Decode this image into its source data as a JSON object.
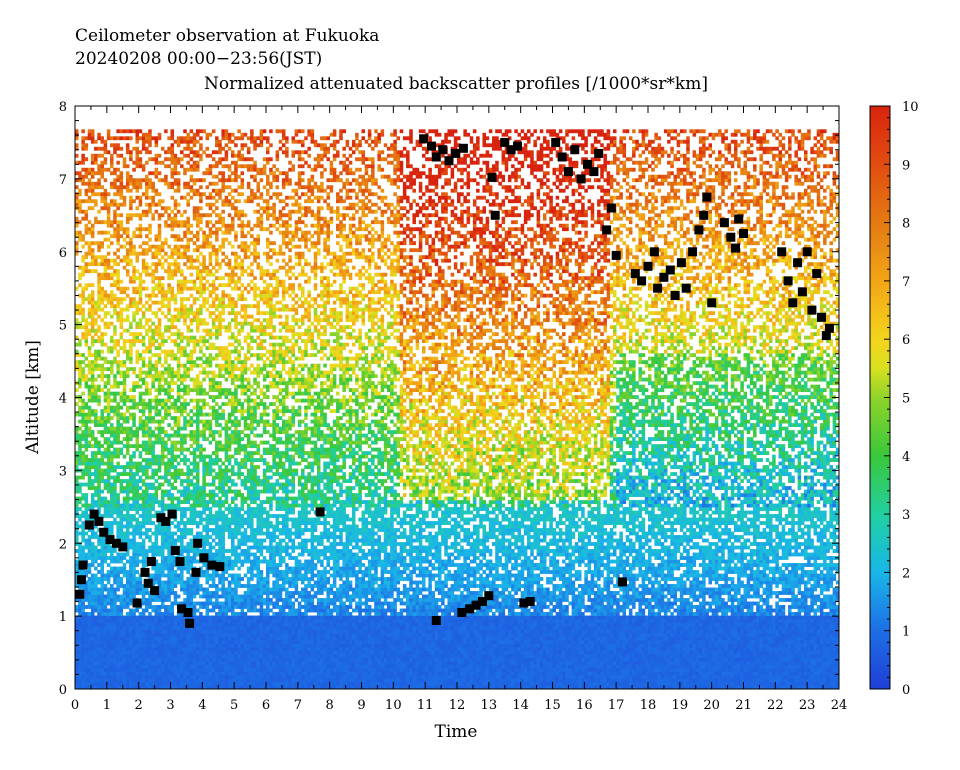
{
  "chart_data": {
    "type": "heatmap",
    "title_lines": [
      "Ceilometer observation at Fukuoka",
      "20240208  00:00−23:56(JST)"
    ],
    "subtitle": "Normalized attenuated backscatter profiles [/1000*sr*km]",
    "xlabel": "Time",
    "ylabel": "Altitude [km]",
    "xlim": [
      0,
      24
    ],
    "ylim": [
      0,
      8
    ],
    "x_ticks": [
      "0",
      "1",
      "2",
      "3",
      "4",
      "5",
      "6",
      "7",
      "8",
      "9",
      "10",
      "11",
      "12",
      "13",
      "14",
      "15",
      "16",
      "17",
      "18",
      "19",
      "20",
      "21",
      "22",
      "23",
      "24"
    ],
    "y_ticks": [
      "0",
      "1",
      "2",
      "3",
      "4",
      "5",
      "6",
      "7",
      "8"
    ],
    "colorbar": {
      "range": [
        0,
        10
      ],
      "ticks": [
        "0",
        "1",
        "2",
        "3",
        "4",
        "5",
        "6",
        "7",
        "8",
        "9",
        "10"
      ],
      "stops": [
        {
          "value": 0,
          "color": "#1f3fd6"
        },
        {
          "value": 1,
          "color": "#1d6fe6"
        },
        {
          "value": 2,
          "color": "#19b6e8"
        },
        {
          "value": 3,
          "color": "#22d0a0"
        },
        {
          "value": 4,
          "color": "#39c83a"
        },
        {
          "value": 5,
          "color": "#8fd42a"
        },
        {
          "value": 5.5,
          "color": "#d8e020"
        },
        {
          "value": 6,
          "color": "#f4d41c"
        },
        {
          "value": 7,
          "color": "#f2a516"
        },
        {
          "value": 8,
          "color": "#e47a12"
        },
        {
          "value": 9,
          "color": "#e24d10"
        },
        {
          "value": 10,
          "color": "#d8230e"
        }
      ]
    },
    "cloud_base_markers": [
      {
        "time": 0.15,
        "alt": 1.3
      },
      {
        "time": 0.2,
        "alt": 1.5
      },
      {
        "time": 0.25,
        "alt": 1.7
      },
      {
        "time": 0.45,
        "alt": 2.25
      },
      {
        "time": 0.6,
        "alt": 2.4
      },
      {
        "time": 0.75,
        "alt": 2.3
      },
      {
        "time": 0.9,
        "alt": 2.15
      },
      {
        "time": 1.1,
        "alt": 2.05
      },
      {
        "time": 1.3,
        "alt": 2.0
      },
      {
        "time": 1.5,
        "alt": 1.95
      },
      {
        "time": 1.95,
        "alt": 1.18
      },
      {
        "time": 2.2,
        "alt": 1.6
      },
      {
        "time": 2.3,
        "alt": 1.45
      },
      {
        "time": 2.4,
        "alt": 1.75
      },
      {
        "time": 2.5,
        "alt": 1.35
      },
      {
        "time": 2.7,
        "alt": 2.35
      },
      {
        "time": 2.85,
        "alt": 2.3
      },
      {
        "time": 3.05,
        "alt": 2.4
      },
      {
        "time": 3.15,
        "alt": 1.9
      },
      {
        "time": 3.3,
        "alt": 1.75
      },
      {
        "time": 3.35,
        "alt": 1.1
      },
      {
        "time": 3.55,
        "alt": 1.05
      },
      {
        "time": 3.6,
        "alt": 0.9
      },
      {
        "time": 3.8,
        "alt": 1.6
      },
      {
        "time": 3.85,
        "alt": 2.0
      },
      {
        "time": 4.05,
        "alt": 1.8
      },
      {
        "time": 4.3,
        "alt": 1.7
      },
      {
        "time": 4.55,
        "alt": 1.68
      },
      {
        "time": 7.7,
        "alt": 2.43
      },
      {
        "time": 10.95,
        "alt": 7.55
      },
      {
        "time": 11.2,
        "alt": 7.45
      },
      {
        "time": 11.35,
        "alt": 7.3
      },
      {
        "time": 11.55,
        "alt": 7.4
      },
      {
        "time": 11.75,
        "alt": 7.25
      },
      {
        "time": 11.95,
        "alt": 7.35
      },
      {
        "time": 12.2,
        "alt": 7.42
      },
      {
        "time": 11.35,
        "alt": 0.94
      },
      {
        "time": 12.15,
        "alt": 1.05
      },
      {
        "time": 12.4,
        "alt": 1.1
      },
      {
        "time": 12.6,
        "alt": 1.15
      },
      {
        "time": 12.8,
        "alt": 1.2
      },
      {
        "time": 13.0,
        "alt": 1.28
      },
      {
        "time": 13.1,
        "alt": 7.02
      },
      {
        "time": 13.2,
        "alt": 6.5
      },
      {
        "time": 13.5,
        "alt": 7.5
      },
      {
        "time": 13.7,
        "alt": 7.4
      },
      {
        "time": 13.9,
        "alt": 7.45
      },
      {
        "time": 14.1,
        "alt": 1.18
      },
      {
        "time": 14.3,
        "alt": 1.2
      },
      {
        "time": 15.1,
        "alt": 7.5
      },
      {
        "time": 15.3,
        "alt": 7.3
      },
      {
        "time": 15.5,
        "alt": 7.1
      },
      {
        "time": 15.7,
        "alt": 7.4
      },
      {
        "time": 15.9,
        "alt": 7.0
      },
      {
        "time": 16.1,
        "alt": 7.2
      },
      {
        "time": 16.3,
        "alt": 7.1
      },
      {
        "time": 16.45,
        "alt": 7.35
      },
      {
        "time": 16.7,
        "alt": 6.3
      },
      {
        "time": 16.85,
        "alt": 6.6
      },
      {
        "time": 17.0,
        "alt": 5.95
      },
      {
        "time": 17.2,
        "alt": 1.47
      },
      {
        "time": 17.6,
        "alt": 5.7
      },
      {
        "time": 17.8,
        "alt": 5.6
      },
      {
        "time": 18.0,
        "alt": 5.8
      },
      {
        "time": 18.2,
        "alt": 6.0
      },
      {
        "time": 18.3,
        "alt": 5.5
      },
      {
        "time": 18.5,
        "alt": 5.65
      },
      {
        "time": 18.7,
        "alt": 5.75
      },
      {
        "time": 18.85,
        "alt": 5.4
      },
      {
        "time": 19.05,
        "alt": 5.85
      },
      {
        "time": 19.2,
        "alt": 5.5
      },
      {
        "time": 19.4,
        "alt": 6.0
      },
      {
        "time": 19.6,
        "alt": 6.3
      },
      {
        "time": 19.75,
        "alt": 6.5
      },
      {
        "time": 19.85,
        "alt": 6.75
      },
      {
        "time": 20.0,
        "alt": 5.3
      },
      {
        "time": 20.4,
        "alt": 6.4
      },
      {
        "time": 20.6,
        "alt": 6.2
      },
      {
        "time": 20.75,
        "alt": 6.05
      },
      {
        "time": 20.85,
        "alt": 6.45
      },
      {
        "time": 21.0,
        "alt": 6.25
      },
      {
        "time": 22.2,
        "alt": 6.0
      },
      {
        "time": 22.4,
        "alt": 5.6
      },
      {
        "time": 22.55,
        "alt": 5.3
      },
      {
        "time": 22.7,
        "alt": 5.85
      },
      {
        "time": 22.85,
        "alt": 5.45
      },
      {
        "time": 23.0,
        "alt": 6.0
      },
      {
        "time": 23.15,
        "alt": 5.2
      },
      {
        "time": 23.3,
        "alt": 5.7
      },
      {
        "time": 23.45,
        "alt": 5.1
      },
      {
        "time": 23.6,
        "alt": 4.85
      },
      {
        "time": 23.7,
        "alt": 4.95
      }
    ]
  }
}
